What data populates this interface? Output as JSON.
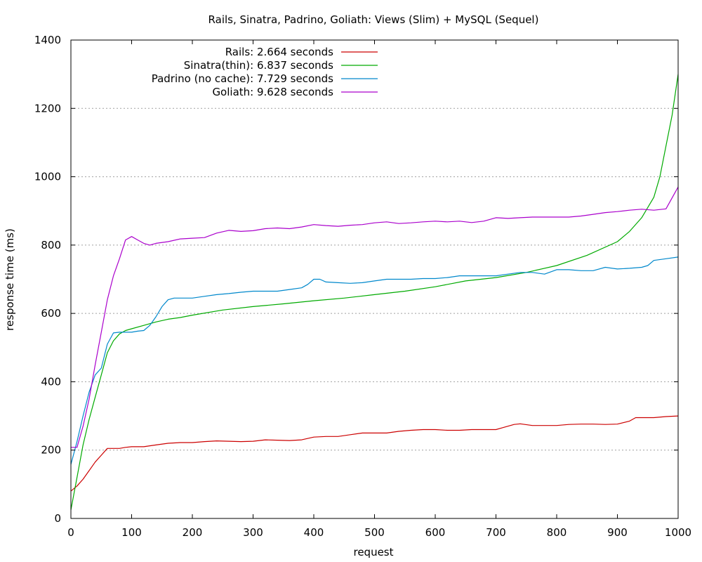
{
  "chart_data": {
    "type": "line",
    "title": "Rails, Sinatra, Padrino, Goliath: Views (Slim) + MySQL (Sequel)",
    "xlabel": "request",
    "ylabel": "response time (ms)",
    "xlim": [
      0,
      1000
    ],
    "ylim": [
      0,
      1400
    ],
    "x_ticks": [
      0,
      100,
      200,
      300,
      400,
      500,
      600,
      700,
      800,
      900,
      1000
    ],
    "y_ticks": [
      0,
      200,
      400,
      600,
      800,
      1000,
      1200,
      1400
    ],
    "grid": "horizontal dotted",
    "legend_position": "top-left",
    "series": [
      {
        "name": "Rails: 2.664 seconds",
        "color": "#cc0000",
        "x": [
          0,
          10,
          20,
          30,
          40,
          50,
          60,
          70,
          80,
          90,
          100,
          120,
          140,
          160,
          180,
          200,
          220,
          240,
          260,
          280,
          300,
          320,
          340,
          360,
          380,
          400,
          420,
          440,
          460,
          480,
          500,
          520,
          540,
          560,
          580,
          600,
          620,
          640,
          660,
          680,
          700,
          710,
          730,
          740,
          760,
          780,
          800,
          820,
          840,
          860,
          880,
          900,
          920,
          930,
          940,
          960,
          980,
          1000
        ],
        "y": [
          80,
          95,
          115,
          140,
          165,
          185,
          205,
          205,
          205,
          208,
          210,
          210,
          215,
          220,
          222,
          222,
          225,
          227,
          226,
          225,
          226,
          230,
          229,
          228,
          230,
          238,
          240,
          240,
          245,
          250,
          250,
          250,
          255,
          258,
          260,
          260,
          258,
          258,
          260,
          260,
          260,
          265,
          275,
          277,
          272,
          272,
          272,
          275,
          276,
          276,
          275,
          276,
          285,
          295,
          295,
          295,
          298,
          300
        ]
      },
      {
        "name": "Sinatra(thin): 6.837 seconds",
        "color": "#00aa00",
        "x": [
          0,
          10,
          20,
          30,
          40,
          50,
          60,
          70,
          80,
          90,
          100,
          120,
          140,
          160,
          180,
          200,
          250,
          300,
          350,
          400,
          450,
          500,
          550,
          600,
          650,
          700,
          750,
          800,
          850,
          900,
          920,
          940,
          960,
          970,
          980,
          990,
          1000
        ],
        "y": [
          25,
          120,
          215,
          290,
          355,
          420,
          485,
          520,
          540,
          550,
          555,
          565,
          575,
          583,
          588,
          595,
          610,
          620,
          628,
          637,
          645,
          655,
          665,
          678,
          695,
          705,
          720,
          740,
          770,
          810,
          840,
          880,
          940,
          1000,
          1090,
          1180,
          1300
        ]
      },
      {
        "name": "Padrino (no cache): 7.729 seconds",
        "color": "#0088cc",
        "x": [
          0,
          10,
          20,
          30,
          40,
          50,
          60,
          70,
          80,
          90,
          100,
          110,
          120,
          130,
          140,
          150,
          160,
          170,
          180,
          200,
          220,
          240,
          260,
          280,
          300,
          320,
          340,
          360,
          380,
          390,
          400,
          410,
          420,
          440,
          460,
          480,
          500,
          520,
          540,
          560,
          580,
          600,
          620,
          640,
          660,
          680,
          700,
          720,
          740,
          760,
          780,
          800,
          820,
          840,
          860,
          880,
          900,
          920,
          940,
          950,
          960,
          980,
          1000
        ],
        "y": [
          158,
          225,
          300,
          370,
          420,
          440,
          510,
          543,
          545,
          545,
          545,
          548,
          550,
          565,
          590,
          620,
          640,
          645,
          645,
          645,
          650,
          655,
          658,
          662,
          665,
          665,
          665,
          670,
          675,
          685,
          700,
          700,
          692,
          690,
          688,
          690,
          695,
          700,
          700,
          700,
          702,
          702,
          705,
          710,
          710,
          710,
          710,
          715,
          720,
          720,
          715,
          728,
          728,
          725,
          725,
          735,
          730,
          732,
          735,
          740,
          755,
          760,
          765
        ]
      },
      {
        "name": "Goliath: 9.628 seconds",
        "color": "#aa00cc",
        "x": [
          0,
          10,
          20,
          30,
          40,
          50,
          60,
          70,
          80,
          90,
          100,
          110,
          120,
          130,
          140,
          160,
          180,
          200,
          220,
          240,
          260,
          280,
          300,
          320,
          340,
          360,
          380,
          400,
          420,
          440,
          460,
          480,
          500,
          520,
          540,
          560,
          580,
          600,
          620,
          640,
          660,
          680,
          700,
          720,
          740,
          760,
          780,
          800,
          820,
          840,
          860,
          880,
          900,
          920,
          940,
          960,
          980,
          1000
        ],
        "y": [
          208,
          208,
          270,
          350,
          450,
          545,
          640,
          710,
          760,
          815,
          825,
          815,
          805,
          800,
          805,
          810,
          818,
          820,
          822,
          835,
          843,
          840,
          842,
          848,
          850,
          848,
          853,
          860,
          857,
          855,
          858,
          860,
          865,
          868,
          863,
          865,
          868,
          870,
          868,
          870,
          866,
          870,
          880,
          878,
          880,
          882,
          882,
          882,
          882,
          885,
          890,
          895,
          898,
          902,
          905,
          902,
          906,
          970
        ]
      }
    ]
  }
}
